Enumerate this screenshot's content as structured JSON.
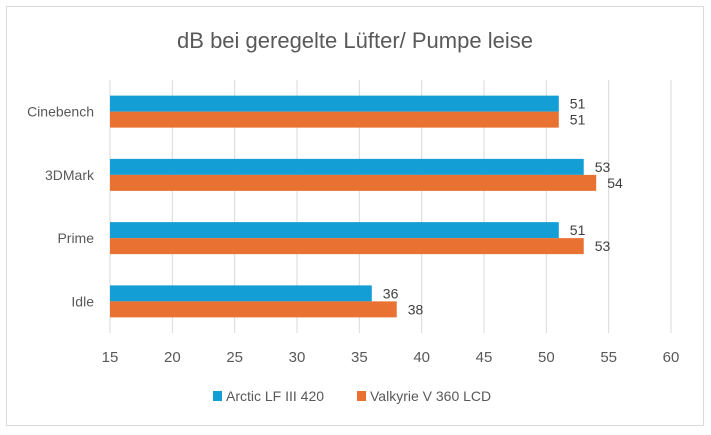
{
  "chart_data": {
    "type": "bar",
    "orientation": "horizontal",
    "title": "dB bei  geregelte Lüfter/ Pumpe leise",
    "categories": [
      "Cinebench",
      "3DMark",
      "Prime",
      "Idle"
    ],
    "series": [
      {
        "name": "Arctic LF III 420",
        "color": "#139ED5",
        "values": [
          51,
          53,
          51,
          36
        ]
      },
      {
        "name": "Valkyrie V 360 LCD",
        "color": "#E97132",
        "values": [
          51,
          54,
          53,
          38
        ]
      }
    ],
    "xlim": [
      15,
      60
    ],
    "xticks": [
      "15",
      "20",
      "25",
      "30",
      "35",
      "40",
      "45",
      "50",
      "55",
      "60"
    ],
    "grid": true,
    "data_labels": true,
    "legend_position": "bottom"
  }
}
